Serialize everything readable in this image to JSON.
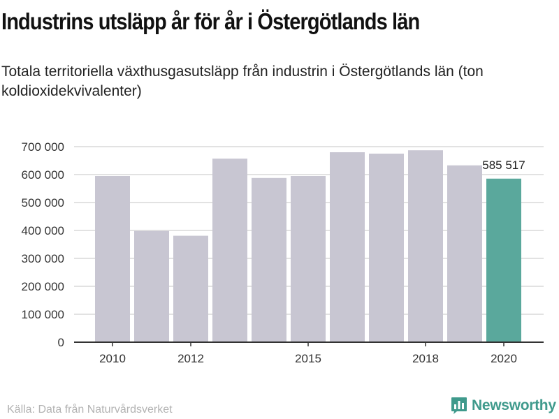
{
  "header": {
    "title": "Industrins utsläpp år för år i Östergötlands län",
    "subtitle": "Totala territoriella växthusgasutsläpp från industrin i Östergötlands län (ton koldioxidekvivalenter)"
  },
  "footer": {
    "source": "Källa: Data från Naturvårdsverket",
    "brand": "Newsworthy",
    "brand_icon": "bar-chart-icon"
  },
  "colors": {
    "bar": "#c8c6d2",
    "highlight": "#5aa89c",
    "grid": "#d9d9d9",
    "axis": "#333333",
    "brand": "#3f9a8c"
  },
  "chart_data": {
    "type": "bar",
    "title": "",
    "xlabel": "",
    "ylabel": "",
    "categories": [
      "2010",
      "2011",
      "2012",
      "2013",
      "2014",
      "2015",
      "2016",
      "2017",
      "2018",
      "2019",
      "2020"
    ],
    "values": [
      595000,
      398000,
      381000,
      657000,
      588000,
      595000,
      680000,
      675000,
      687000,
      633000,
      585517
    ],
    "highlight_index": 10,
    "highlight_label": "585 517",
    "ylim": [
      0,
      700000
    ],
    "yticks": [
      0,
      100000,
      200000,
      300000,
      400000,
      500000,
      600000,
      700000
    ],
    "ytick_labels": [
      "0",
      "100 000",
      "200 000",
      "300 000",
      "400 000",
      "500 000",
      "600 000",
      "700 000"
    ],
    "xtick_labels": [
      "2010",
      "2012",
      "2015",
      "2018",
      "2020"
    ],
    "grid": true,
    "legend": false
  }
}
